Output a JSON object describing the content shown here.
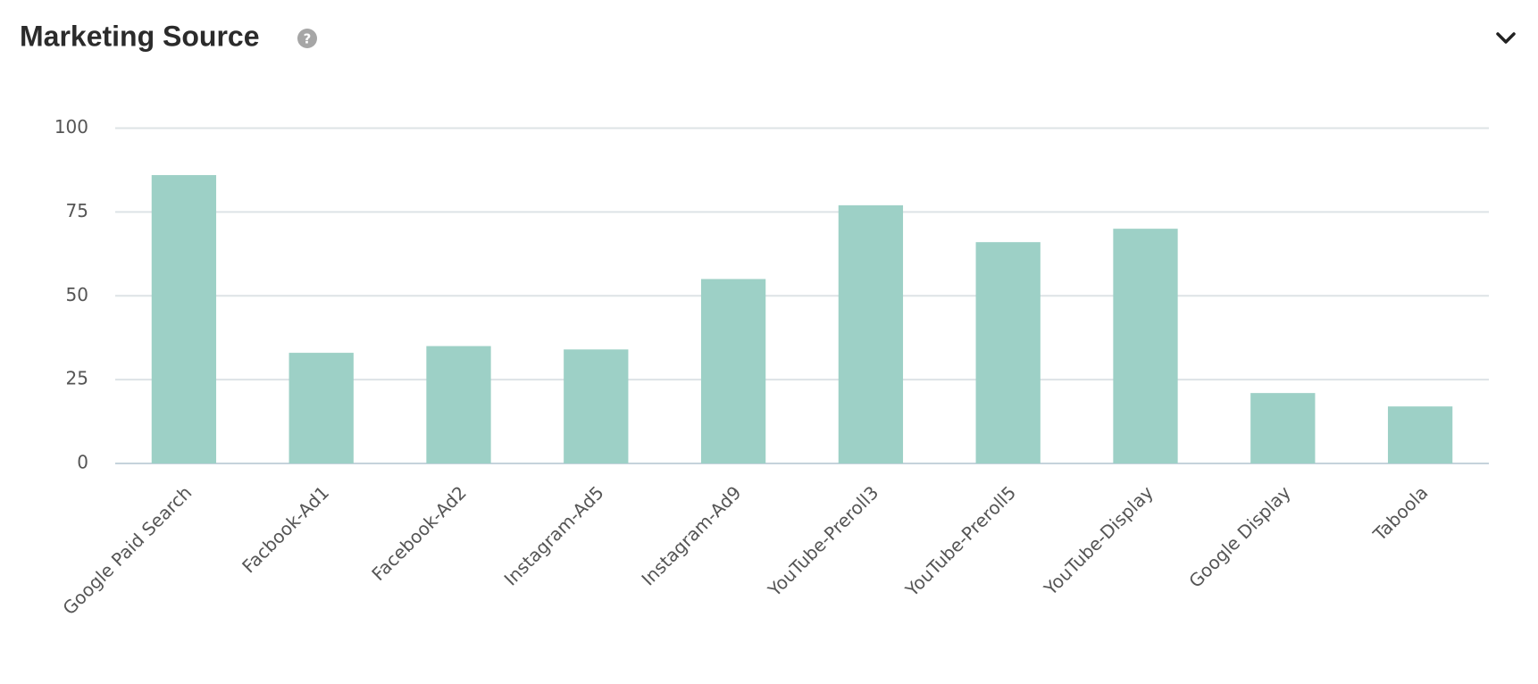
{
  "chart_data": {
    "type": "bar",
    "title": "Marketing Source",
    "categories": [
      "Google Paid Search",
      "Facbook-Ad1",
      "Facebook-Ad2",
      "Instagram-Ad5",
      "Instagram-Ad9",
      "YouTube-Preroll3",
      "YouTube-Preroll5",
      "YouTube-Display",
      "Google Display",
      "Taboola"
    ],
    "values": [
      86,
      33,
      35,
      34,
      55,
      77,
      66,
      70,
      21,
      17
    ],
    "color": "#9dd0c6",
    "ylim": [
      0,
      100
    ],
    "yticks": [
      0,
      25,
      50,
      75,
      100
    ],
    "grid": true
  }
}
